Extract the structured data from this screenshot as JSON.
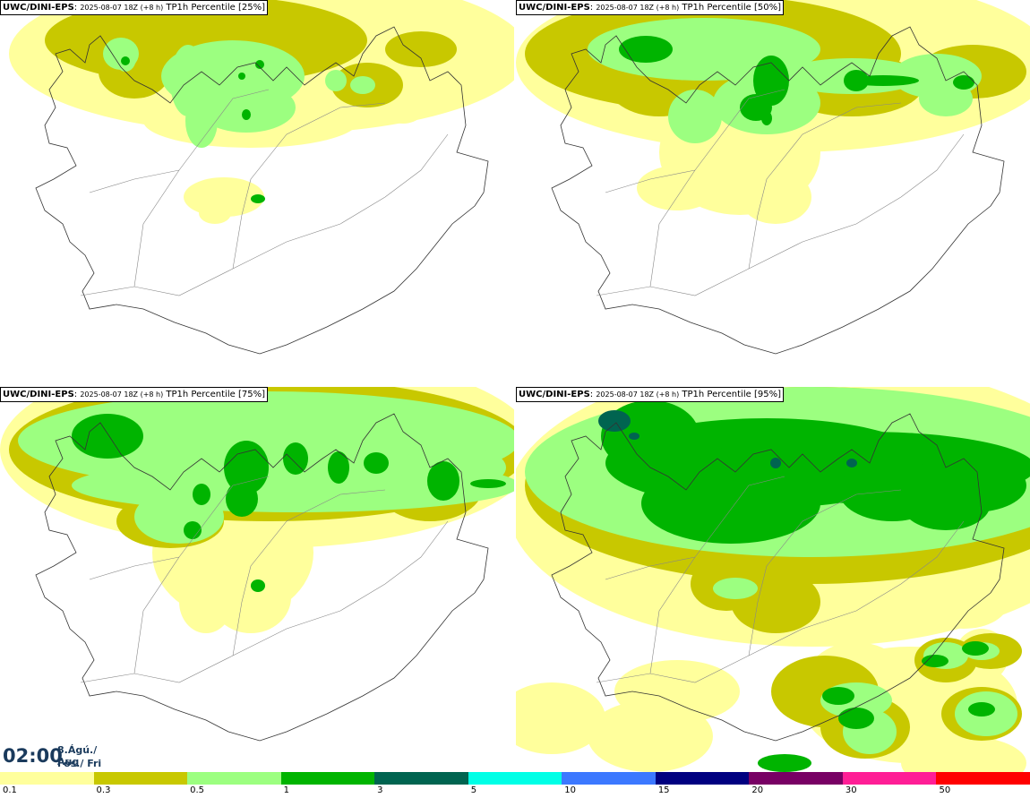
{
  "panels": [
    {
      "model": "UWC/DINI-EPS",
      "run": "2025-08-07 18Z (+8 h)",
      "product": "TP1h Percentile [25%]"
    },
    {
      "model": "UWC/DINI-EPS",
      "run": "2025-08-07 18Z (+8 h)",
      "product": "TP1h Percentile [50%]"
    },
    {
      "model": "UWC/DINI-EPS",
      "run": "2025-08-07 18Z (+8 h)",
      "product": "TP1h Percentile [75%]"
    },
    {
      "model": "UWC/DINI-EPS",
      "run": "2025-08-07 18Z (+8 h)",
      "product": "TP1h Percentile [95%]"
    }
  ],
  "valid_time": {
    "time": "02:00",
    "date_line1": "8.Ágú./ Aug",
    "date_line2": "Fös./ Fri"
  },
  "colorbar": {
    "ticks": [
      "0.1",
      "0.3",
      "0.5",
      "1",
      "3",
      "5",
      "10",
      "15",
      "20",
      "30",
      "50"
    ],
    "colors": [
      "#ffff9c",
      "#c8c800",
      "#9cff80",
      "#00b400",
      "#006450",
      "#00ffe6",
      "#3c78ff",
      "#000080",
      "#780064",
      "#ff1e96",
      "#ff0000"
    ]
  }
}
